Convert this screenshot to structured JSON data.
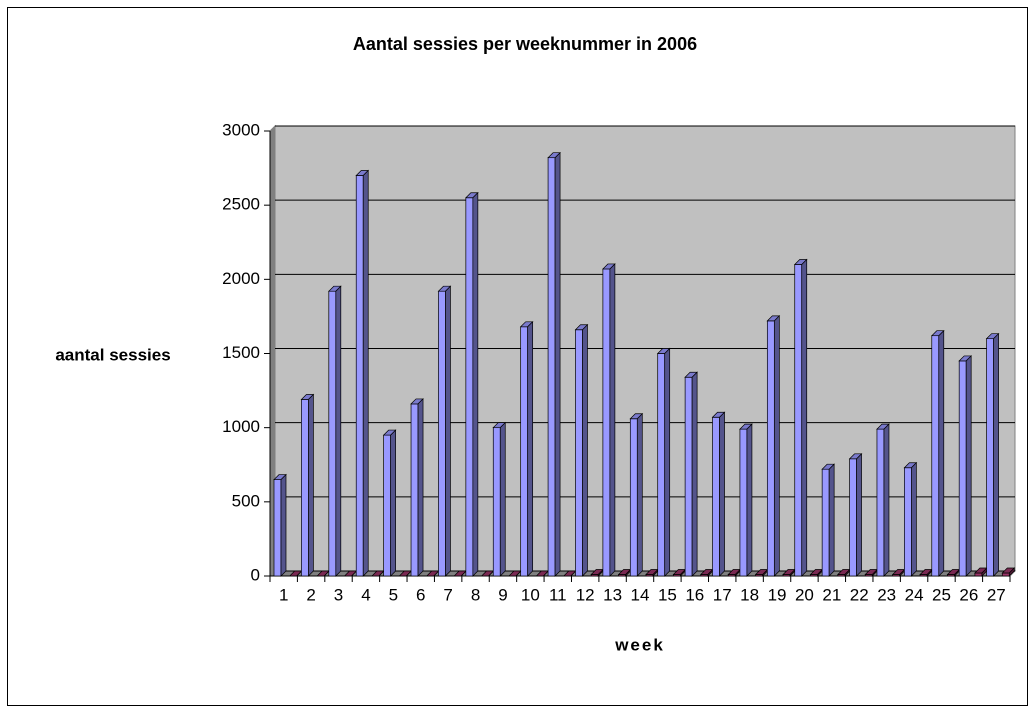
{
  "chart_data": {
    "type": "bar",
    "title": "Aantal sessies per weeknummer in 2006",
    "x_label": "week",
    "y_label": "aantal sessies",
    "categories": [
      "1",
      "2",
      "3",
      "4",
      "5",
      "6",
      "7",
      "8",
      "9",
      "10",
      "11",
      "12",
      "13",
      "14",
      "15",
      "16",
      "17",
      "18",
      "19",
      "20",
      "21",
      "22",
      "23",
      "24",
      "25",
      "26",
      "27"
    ],
    "series": [
      {
        "color": "#9999ff",
        "values": [
          650,
          1190,
          1920,
          2700,
          950,
          1160,
          1920,
          2550,
          1000,
          1680,
          2820,
          1660,
          2070,
          1060,
          1500,
          1340,
          1070,
          990,
          1720,
          2100,
          720,
          790,
          990,
          730,
          1620,
          1450,
          1600
        ]
      },
      {
        "color": "#993366",
        "values": [
          0,
          0,
          0,
          0,
          0,
          0,
          0,
          0,
          0,
          0,
          0,
          10,
          10,
          10,
          10,
          10,
          10,
          10,
          10,
          10,
          10,
          10,
          10,
          10,
          10,
          20,
          20
        ]
      }
    ],
    "ylim": [
      0,
      3000
    ],
    "yticks": [
      0,
      500,
      1000,
      1500,
      2000,
      2500,
      3000
    ],
    "grid": true,
    "plot_background": "#c0c0c0"
  }
}
